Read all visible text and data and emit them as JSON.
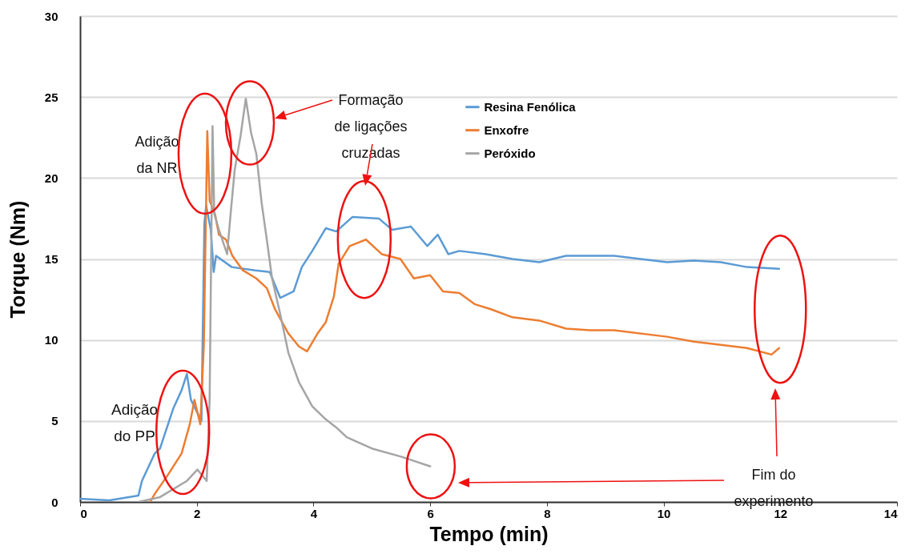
{
  "chart_data": {
    "type": "line",
    "xlabel": "Tempo (min)",
    "ylabel": "Torque (Nm)",
    "xlim": [
      0,
      14
    ],
    "xticks": [
      0,
      2,
      4,
      6,
      8,
      10,
      12,
      14
    ],
    "ylim": [
      0,
      30
    ],
    "yticks": [
      0,
      5,
      10,
      15,
      20,
      25,
      30
    ],
    "grid": "y",
    "legend": "top",
    "line_style": "solid",
    "marker": "none",
    "series": [
      {
        "name": "Resina Fenólica",
        "color": "#5b9bd5",
        "x": [
          0,
          0.5,
          1.0,
          1.06,
          1.28,
          1.37,
          1.6,
          1.74,
          1.83,
          1.9,
          2.08,
          2.13,
          2.16,
          2.24,
          2.29,
          2.33,
          2.6,
          3.0,
          3.25,
          3.43,
          3.66,
          3.8,
          3.98,
          4.21,
          4.39,
          4.67,
          5.12,
          5.35,
          5.67,
          5.95,
          6.13,
          6.31,
          6.5,
          6.95,
          7.41,
          7.87,
          8.33,
          8.78,
          9.15,
          10.06,
          10.52,
          10.98,
          11.43,
          11.98
        ],
        "values": [
          0.2,
          0.1,
          0.4,
          1.3,
          3.0,
          3.3,
          5.8,
          6.9,
          7.9,
          6.3,
          5.0,
          17.2,
          18.3,
          16.8,
          14.2,
          15.2,
          14.5,
          14.3,
          14.2,
          12.6,
          13.0,
          14.5,
          15.5,
          16.9,
          16.7,
          17.6,
          17.5,
          16.8,
          17.0,
          15.8,
          16.5,
          15.3,
          15.5,
          15.3,
          15.0,
          14.8,
          15.2,
          15.2,
          15.2,
          14.8,
          14.9,
          14.8,
          14.5,
          14.4
        ]
      },
      {
        "name": "Enxofre",
        "color": "#ed7d31",
        "x": [
          1.2,
          1.28,
          1.51,
          1.74,
          1.88,
          1.96,
          2.06,
          2.12,
          2.18,
          2.22,
          2.31,
          2.38,
          2.5,
          2.61,
          2.79,
          3.02,
          3.2,
          3.34,
          3.57,
          3.75,
          3.89,
          4.07,
          4.21,
          4.35,
          4.43,
          4.62,
          4.9,
          5.17,
          5.49,
          5.72,
          6.0,
          6.22,
          6.5,
          6.77,
          7.04,
          7.41,
          7.87,
          8.33,
          8.74,
          9.15,
          10.06,
          10.52,
          10.98,
          11.43,
          11.85,
          11.98
        ],
        "values": [
          0,
          0.5,
          1.7,
          3.0,
          4.8,
          6.3,
          4.8,
          9.6,
          22.9,
          18.6,
          17.8,
          16.5,
          16.2,
          15.2,
          14.3,
          13.8,
          13.2,
          11.9,
          10.4,
          9.6,
          9.3,
          10.4,
          11.1,
          12.7,
          14.7,
          15.8,
          16.2,
          15.3,
          15.0,
          13.8,
          14.0,
          13.0,
          12.9,
          12.2,
          11.9,
          11.4,
          11.2,
          10.7,
          10.6,
          10.6,
          10.2,
          9.9,
          9.7,
          9.5,
          9.1,
          9.5
        ]
      },
      {
        "name": "Peróxido",
        "color": "#a5a5a5",
        "x": [
          1.0,
          1.37,
          1.83,
          2.01,
          2.17,
          2.22,
          2.27,
          2.3,
          2.38,
          2.52,
          2.58,
          2.65,
          2.75,
          2.84,
          2.93,
          3.02,
          3.11,
          3.2,
          3.29,
          3.43,
          3.57,
          3.75,
          3.98,
          4.21,
          4.39,
          4.57,
          5.0,
          5.5,
          6.0
        ],
        "values": [
          0,
          0.3,
          1.3,
          2.0,
          1.3,
          6.3,
          23.2,
          17.8,
          16.8,
          15.3,
          17.8,
          20.5,
          22.6,
          24.9,
          22.8,
          21.5,
          18.5,
          16.2,
          13.8,
          11.6,
          9.2,
          7.4,
          5.9,
          5.1,
          4.6,
          4.0,
          3.3,
          2.8,
          2.2
        ]
      }
    ],
    "annotations": [
      "Adição\ndo PP",
      "Adição\nda NR",
      "Formação\nde ligações\ncruzadas",
      "Fim do\nexperimento"
    ]
  }
}
